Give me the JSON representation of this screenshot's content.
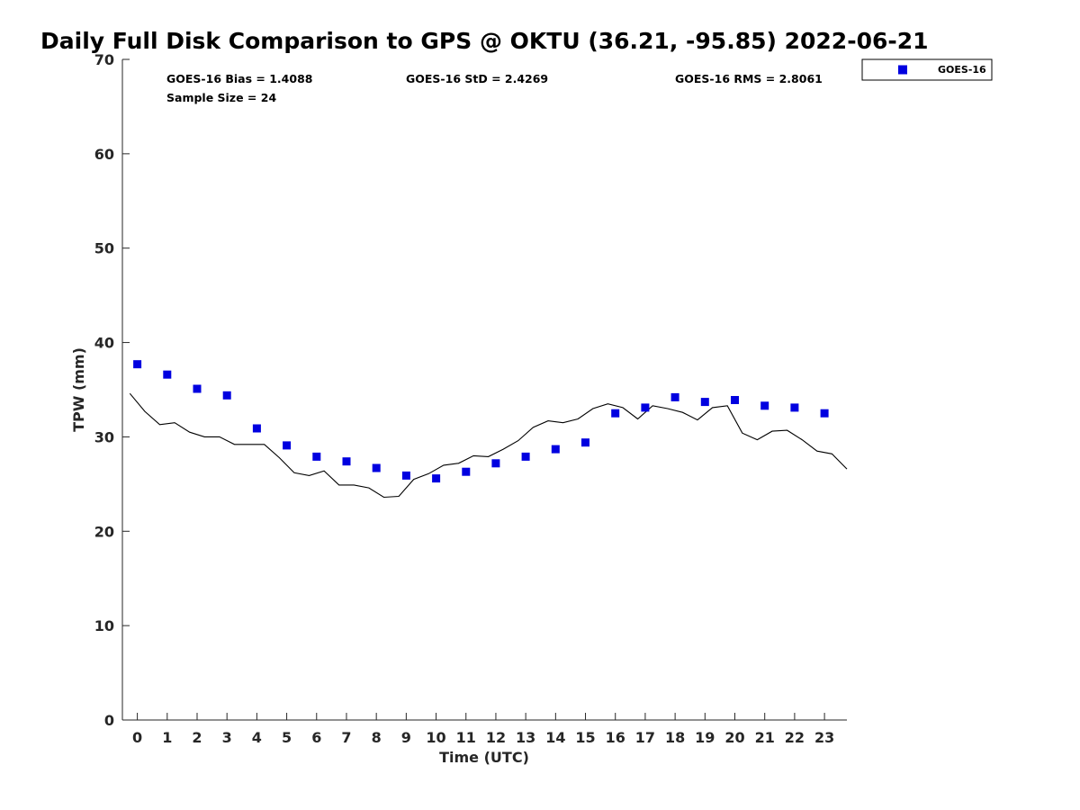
{
  "colors": {
    "goes_marker": "#0000e0",
    "gps_line": "#000000",
    "axis": "#262626"
  },
  "chart_data": {
    "type": "scatter",
    "title": "Daily Full Disk Comparison to GPS @ OKTU (36.21, -95.85) 2022-06-21",
    "xlabel": "Time (UTC)",
    "ylabel": "TPW (mm)",
    "xlim": [
      -0.5,
      23.75
    ],
    "ylim": [
      0,
      70
    ],
    "xticks": [
      "0",
      "1",
      "2",
      "3",
      "4",
      "5",
      "6",
      "7",
      "8",
      "9",
      "10",
      "11",
      "12",
      "13",
      "14",
      "15",
      "16",
      "17",
      "18",
      "19",
      "20",
      "21",
      "22",
      "23"
    ],
    "yticks": [
      "0",
      "10",
      "20",
      "30",
      "40",
      "50",
      "60",
      "70"
    ],
    "grid": false,
    "legend": {
      "position": "top-right outside",
      "entries": [
        "GOES-16"
      ]
    },
    "stats": {
      "bias": "GOES-16 Bias = 1.4088",
      "std": "GOES-16 StD = 2.4269",
      "rms": "GOES-16 RMS = 2.8061",
      "sample": "Sample Size = 24"
    },
    "series": [
      {
        "name": "GOES-16",
        "kind": "scatter",
        "marker": "square",
        "x": [
          0,
          1,
          2,
          3,
          4,
          5,
          6,
          7,
          8,
          9,
          10,
          11,
          12,
          13,
          14,
          15,
          16,
          17,
          18,
          19,
          20,
          21,
          22,
          23
        ],
        "y": [
          37.7,
          36.6,
          35.1,
          34.4,
          30.9,
          29.1,
          27.9,
          27.4,
          26.7,
          25.9,
          25.6,
          26.3,
          27.2,
          27.9,
          28.7,
          29.4,
          32.5,
          33.1,
          34.2,
          33.7,
          33.9,
          33.3,
          33.1,
          32.5
        ]
      },
      {
        "kind": "line",
        "x": [
          -0.25,
          0.25,
          0.75,
          1.25,
          1.75,
          2.25,
          2.75,
          3.25,
          3.75,
          4.25,
          4.75,
          5.25,
          5.75,
          6.25,
          6.75,
          7.25,
          7.75,
          8.25,
          8.75,
          9.25,
          9.75,
          10.25,
          10.75,
          11.25,
          11.75,
          12.25,
          12.75,
          13.25,
          13.75,
          14.25,
          14.75,
          15.25,
          15.75,
          16.25,
          16.75,
          17.25,
          17.75,
          18.25,
          18.75,
          19.25,
          19.75,
          20.25,
          20.75,
          21.25,
          21.75,
          22.25,
          22.75,
          23.25,
          23.75
        ],
        "y": [
          34.6,
          32.7,
          31.3,
          31.5,
          30.5,
          30.0,
          30.0,
          29.2,
          29.2,
          29.2,
          27.8,
          26.2,
          25.9,
          26.4,
          24.9,
          24.9,
          24.6,
          23.6,
          23.7,
          25.5,
          26.1,
          27.0,
          27.2,
          28.0,
          27.9,
          28.7,
          29.6,
          31.0,
          31.7,
          31.5,
          31.9,
          33.0,
          33.5,
          33.1,
          31.9,
          33.3,
          33.0,
          32.6,
          31.8,
          33.1,
          33.3,
          30.4,
          29.7,
          30.6,
          30.7,
          29.7,
          28.5,
          28.2,
          26.6
        ]
      }
    ]
  }
}
